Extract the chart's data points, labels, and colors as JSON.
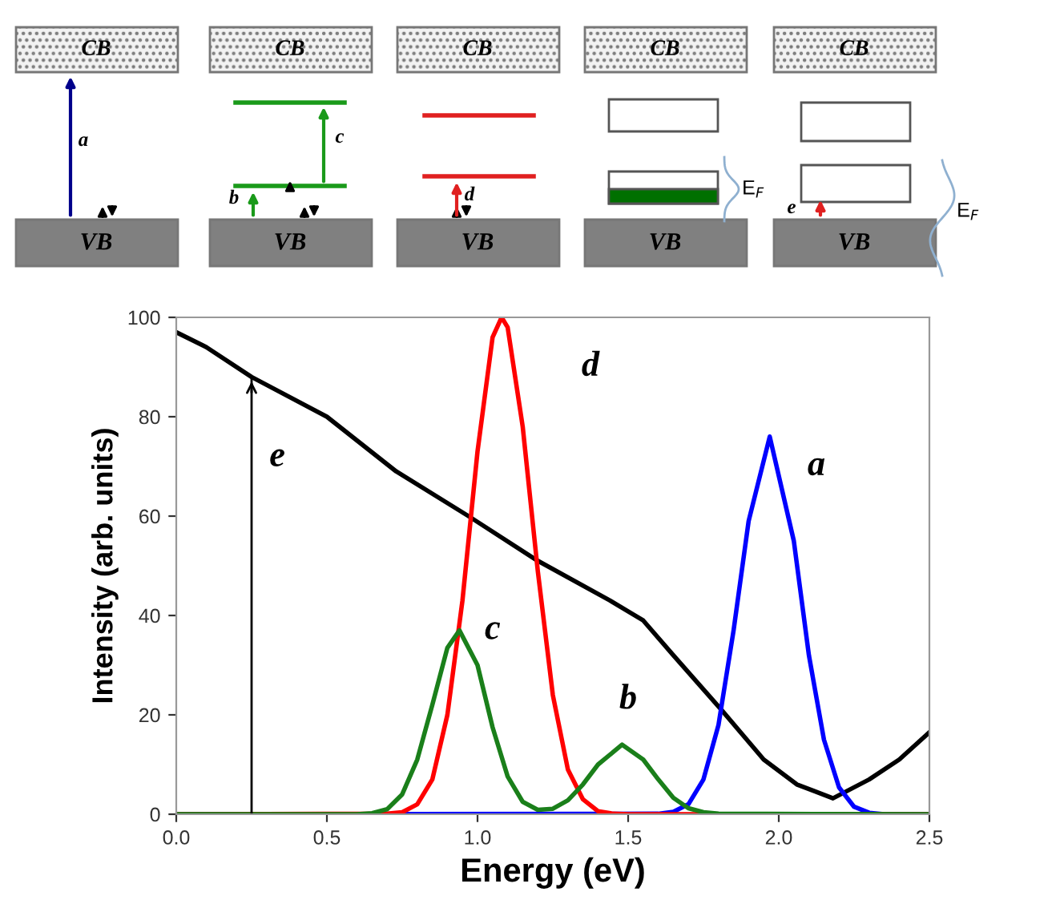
{
  "chart_data": {
    "type": "line",
    "xlabel": "Energy (eV)",
    "ylabel": "Intensity (arb. units)",
    "xlim": [
      0,
      2.5
    ],
    "ylim": [
      0,
      100
    ],
    "xticks": [
      {
        "value": 0,
        "label": "0.0"
      },
      {
        "value": 0.5,
        "label": "0.5"
      },
      {
        "value": 1,
        "label": "1.0"
      },
      {
        "value": 1.5,
        "label": "1.5"
      },
      {
        "value": 2,
        "label": "2.0"
      },
      {
        "value": 2.5,
        "label": "2.5"
      }
    ],
    "yticks": [
      0,
      20,
      40,
      60,
      80,
      100
    ],
    "grid": false,
    "marker": "none",
    "line_style": "solid",
    "series": [
      {
        "color": "#000000",
        "x": [
          0,
          0.1,
          0.25,
          0.5,
          0.73,
          0.97,
          1.2,
          1.44,
          1.55,
          1.65,
          1.81,
          1.95,
          2.06,
          2.18,
          2.3,
          2.4,
          2.5
        ],
        "values": [
          97,
          94,
          88,
          80,
          69,
          60,
          51,
          43,
          39,
          32,
          21,
          11,
          6,
          3.2,
          7,
          11,
          16.5
        ]
      },
      {
        "color": "#0000ff",
        "x": [
          0,
          1.6,
          1.65,
          1.7,
          1.75,
          1.8,
          1.85,
          1.9,
          1.97,
          2.05,
          2.1,
          2.15,
          2.2,
          2.25,
          2.3,
          2.35,
          2.5
        ],
        "values": [
          0,
          0.1,
          0.5,
          2,
          7,
          18,
          37,
          59,
          76,
          55,
          32,
          15,
          5.4,
          1.5,
          0.3,
          0,
          0
        ]
      },
      {
        "color": "#ff0000",
        "x": [
          0,
          0.7,
          0.75,
          0.8,
          0.85,
          0.9,
          0.95,
          1.0,
          1.05,
          1.08,
          1.1,
          1.15,
          1.2,
          1.25,
          1.3,
          1.35,
          1.4,
          1.45,
          1.5,
          2.5
        ],
        "values": [
          0,
          0.1,
          0.4,
          2,
          7,
          20,
          43,
          73,
          96,
          100,
          98,
          78,
          49,
          24,
          9,
          3,
          0.6,
          0.1,
          0,
          0
        ]
      },
      {
        "color": "#1a7f1a",
        "x": [
          0,
          0.55,
          0.6,
          0.65,
          0.7,
          0.75,
          0.8,
          0.85,
          0.9,
          0.94,
          1.0,
          1.05,
          1.1,
          1.15,
          1.2,
          1.25,
          1.3,
          1.35,
          1.4,
          1.48,
          1.55,
          1.6,
          1.65,
          1.7,
          1.75,
          1.8,
          2.5
        ],
        "values": [
          0,
          0,
          0,
          0.2,
          1,
          4,
          11,
          22,
          33.5,
          37,
          30,
          17.5,
          7.6,
          2.5,
          0.9,
          1.1,
          2.8,
          6,
          10,
          14,
          11,
          7,
          3.3,
          1.2,
          0.4,
          0.1,
          0
        ]
      },
      {
        "color": "#000000",
        "x": [
          0.25,
          0.25
        ],
        "values": [
          0,
          88
        ]
      }
    ],
    "annotations": [
      {
        "text": "e",
        "x": 0.25,
        "y": 88
      },
      "d",
      "a",
      "c",
      "b",
      "CB",
      "CB",
      "CB",
      "CB",
      "CB",
      "VB",
      "VB",
      "VB",
      "VB",
      "VB",
      "a",
      "b",
      "c",
      "d",
      "e",
      "E$_{F}$",
      "E$_{F}$"
    ]
  }
}
